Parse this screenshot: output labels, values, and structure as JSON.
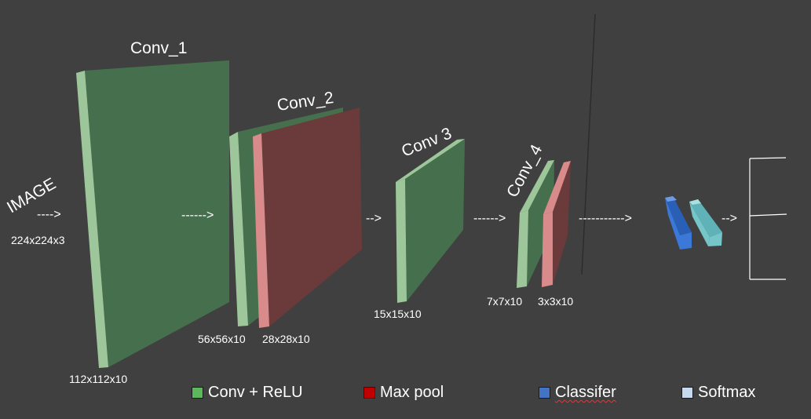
{
  "input": {
    "name": "IMAGE",
    "size": "224x224x3"
  },
  "layers": {
    "conv1": {
      "title": "Conv_1",
      "size": "112x112x10"
    },
    "conv2": {
      "title": "Conv_2",
      "size_conv": "56x56x10",
      "size_pool": "28x28x10"
    },
    "conv3": {
      "title": "Conv 3",
      "size": "15x15x10"
    },
    "conv4": {
      "title": "Conv_4",
      "size_conv": "7x7x10",
      "size_pool": "3x3x10"
    }
  },
  "arrows": [
    "---->",
    "------>",
    "-->",
    "------>",
    "----------->",
    "-->"
  ],
  "legend": [
    {
      "label": "Conv + ReLU",
      "color": "#5cb85c"
    },
    {
      "label": "Max pool",
      "color": "#c00000"
    },
    {
      "label": "Classifer",
      "color": "#4472c4"
    },
    {
      "label": "Softmax",
      "color": "#c5d9f1"
    }
  ],
  "colors": {
    "background": "#404040",
    "conv_face": "#46704d",
    "conv_edge": "#9dc79a",
    "pool_face": "#6b3a3a",
    "pool_edge": "#d98a8a",
    "classifier": "#3c78d8",
    "softmax": "#76c5c8"
  }
}
